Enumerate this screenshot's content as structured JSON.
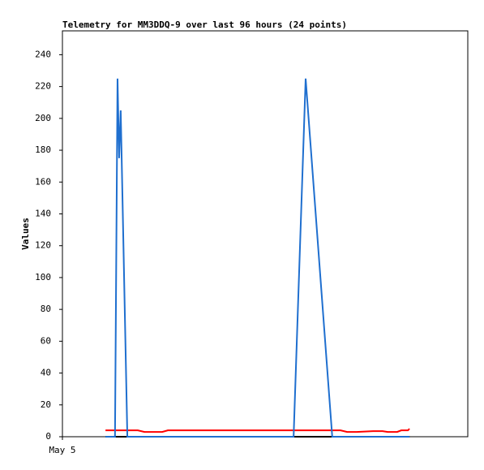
{
  "chart_data": {
    "type": "line",
    "title": "Telemetry for MM3DDQ-9 over last 96 hours (24 points)",
    "y_label": "Values",
    "xlim": [
      0,
      128
    ],
    "xticks": [
      {
        "value": 0,
        "label": "May 5"
      }
    ],
    "ylim": [
      0,
      255
    ],
    "yticks": [
      0,
      20,
      40,
      60,
      80,
      100,
      120,
      140,
      160,
      180,
      200,
      220,
      240
    ],
    "series": [
      {
        "color": "#000000",
        "x": [
          13.6,
          109.6
        ],
        "values": [
          0,
          0
        ]
      },
      {
        "color": "#ff0000",
        "x": [
          13.6,
          23.8,
          25.9,
          31.5,
          33.3,
          87.8,
          89.9,
          92.9,
          98.1,
          101.1,
          102.7,
          105.7,
          107.0,
          109.1,
          109.6
        ],
        "values": [
          4,
          4,
          3,
          3,
          4,
          4,
          3,
          3,
          3.5,
          3.5,
          3,
          3,
          4,
          4,
          5
        ]
      },
      {
        "color": "#1f6fcf",
        "x": [
          13.6,
          16.6,
          17.4,
          17.9,
          18.4,
          20.5,
          73.0,
          76.8,
          85.2,
          109.6
        ],
        "values": [
          0,
          0,
          225,
          175,
          205,
          0,
          0,
          225,
          0,
          0
        ]
      }
    ]
  }
}
